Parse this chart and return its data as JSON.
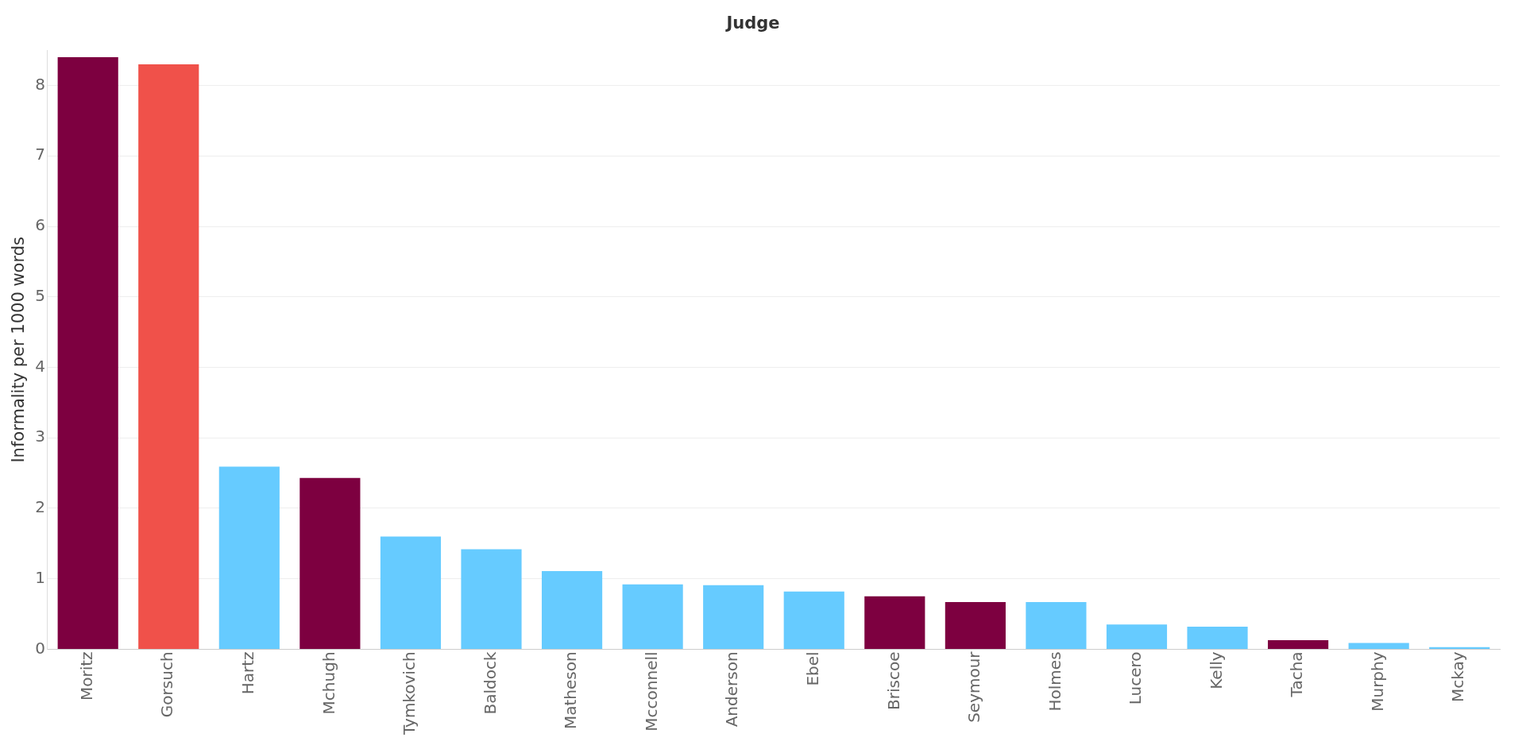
{
  "chart_data": {
    "type": "bar",
    "xlabel": "Judge",
    "ylabel": "Informality per 1000 words",
    "categories": [
      "Moritz",
      "Gorsuch",
      "Hartz",
      "Mchugh",
      "Tymkovich",
      "Baldock",
      "Matheson",
      "Mcconnell",
      "Anderson",
      "Ebel",
      "Briscoe",
      "Seymour",
      "Holmes",
      "Lucero",
      "Kelly",
      "Tacha",
      "Murphy",
      "Mckay"
    ],
    "values": [
      8.4,
      8.3,
      2.59,
      2.43,
      1.6,
      1.42,
      1.11,
      0.92,
      0.91,
      0.82,
      0.75,
      0.67,
      0.67,
      0.35,
      0.32,
      0.13,
      0.09,
      0.03
    ],
    "colors": [
      "#7d0040",
      "#f0514a",
      "#66cbff",
      "#7d0040",
      "#66cbff",
      "#66cbff",
      "#66cbff",
      "#66cbff",
      "#66cbff",
      "#66cbff",
      "#7d0040",
      "#7d0040",
      "#66cbff",
      "#66cbff",
      "#66cbff",
      "#7d0040",
      "#66cbff",
      "#66cbff"
    ],
    "ylim": [
      0,
      8.5
    ],
    "yticks": [
      0,
      1,
      2,
      3,
      4,
      5,
      6,
      7,
      8
    ],
    "grid": "y",
    "legend": false
  }
}
